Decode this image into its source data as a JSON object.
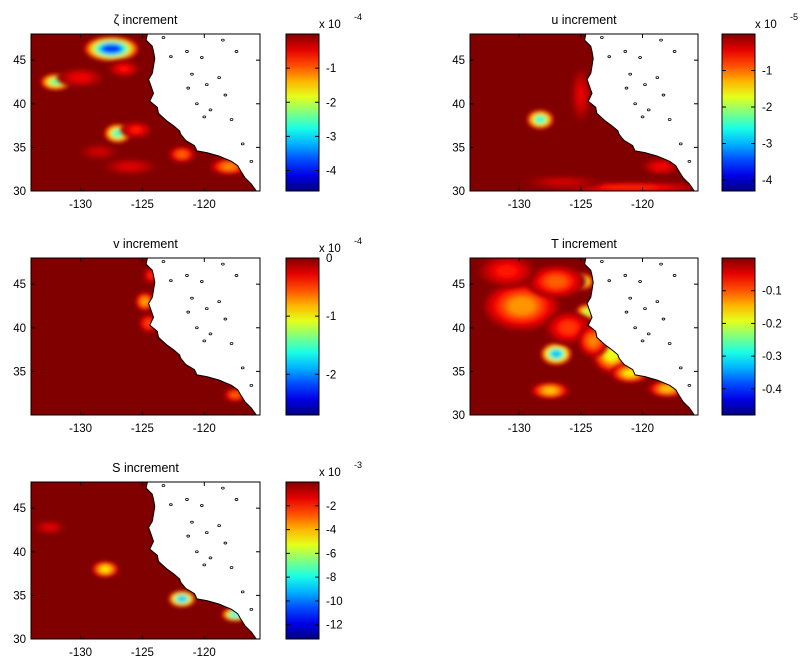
{
  "chart_data": [
    {
      "type": "heatmap",
      "title": "ζ increment",
      "xticks": [
        -130,
        -125,
        -120
      ],
      "yticks": [
        30,
        35,
        40,
        45
      ],
      "xlim": [
        -134,
        -115.5
      ],
      "ylim": [
        30,
        48
      ],
      "colorbar": {
        "ticks": [
          -4,
          -3,
          -2,
          -1
        ],
        "tick_labels": [
          "-4",
          "-3",
          "-2",
          "-1"
        ],
        "range": [
          -4.6,
          0
        ],
        "multiplier_base": "x 10",
        "multiplier_exp": "-4"
      },
      "features": [
        {
          "lon": -127.5,
          "lat": 46.3,
          "value": -4.4,
          "r_lon": 1.4,
          "r_lat": 0.9
        },
        {
          "lon": -132.0,
          "lat": 42.5,
          "value": -2.8,
          "r_lon": 0.8,
          "r_lat": 0.6
        },
        {
          "lon": -127.0,
          "lat": 36.6,
          "value": -3.0,
          "r_lon": 0.7,
          "r_lat": 0.7
        },
        {
          "lon": -126.5,
          "lat": 44.0,
          "value": -0.7,
          "r_lon": 0.8,
          "r_lat": 0.6
        },
        {
          "lon": -130.0,
          "lat": 43.0,
          "value": -0.6,
          "r_lon": 1.2,
          "r_lat": 0.7
        },
        {
          "lon": -125.5,
          "lat": 37.0,
          "value": -0.8,
          "r_lon": 0.8,
          "r_lat": 0.6
        },
        {
          "lon": -121.8,
          "lat": 34.2,
          "value": -1.2,
          "r_lon": 0.7,
          "r_lat": 0.6
        },
        {
          "lon": -118.0,
          "lat": 32.8,
          "value": -1.4,
          "r_lon": 1.0,
          "r_lat": 0.6
        },
        {
          "lon": -126.0,
          "lat": 32.8,
          "value": -0.5,
          "r_lon": 1.4,
          "r_lat": 0.6
        },
        {
          "lon": -128.5,
          "lat": 34.5,
          "value": -0.4,
          "r_lon": 1.0,
          "r_lat": 0.6
        }
      ]
    },
    {
      "type": "heatmap",
      "title": "u increment",
      "xticks": [
        -130,
        -125,
        -120
      ],
      "yticks": [
        30,
        35,
        40,
        45
      ],
      "xlim": [
        -134,
        -115.5
      ],
      "ylim": [
        30,
        48
      ],
      "colorbar": {
        "ticks": [
          -4,
          -3,
          -2,
          -1
        ],
        "tick_labels": [
          "-4",
          "-3",
          "-2",
          "-1"
        ],
        "range": [
          -4.3,
          0
        ],
        "multiplier_base": "x 10",
        "multiplier_exp": "-5"
      },
      "features": [
        {
          "lon": -128.3,
          "lat": 38.2,
          "value": -2.9,
          "r_lon": 0.7,
          "r_lat": 0.7
        },
        {
          "lon": -121.0,
          "lat": 30.4,
          "value": -0.8,
          "r_lon": 4.0,
          "r_lat": 0.4
        },
        {
          "lon": -126.5,
          "lat": 31.0,
          "value": -0.4,
          "r_lon": 2.0,
          "r_lat": 0.5
        },
        {
          "lon": -118.5,
          "lat": 32.8,
          "value": -0.6,
          "r_lon": 1.0,
          "r_lat": 0.6
        },
        {
          "lon": -125.0,
          "lat": 41.0,
          "value": -0.5,
          "r_lon": 0.5,
          "r_lat": 2.0
        }
      ]
    },
    {
      "type": "heatmap",
      "title": "v increment",
      "xticks": [
        -130,
        -125,
        -120
      ],
      "yticks": [
        35,
        40,
        45
      ],
      "xlim": [
        -134,
        -115.5
      ],
      "ylim": [
        30,
        48
      ],
      "colorbar": {
        "ticks": [
          -2,
          -1,
          0
        ],
        "tick_labels": [
          "-2",
          "-1",
          "0"
        ],
        "range": [
          -2.7,
          0
        ],
        "multiplier_base": "x 10",
        "multiplier_exp": "-4"
      },
      "features": [
        {
          "lon": -124.8,
          "lat": 43.0,
          "value": -0.9,
          "r_lon": 0.5,
          "r_lat": 0.7
        },
        {
          "lon": -124.5,
          "lat": 40.5,
          "value": -0.6,
          "r_lon": 0.5,
          "r_lat": 0.7
        },
        {
          "lon": -124.3,
          "lat": 46.0,
          "value": -0.5,
          "r_lon": 0.4,
          "r_lat": 0.6
        },
        {
          "lon": -117.5,
          "lat": 32.3,
          "value": -0.7,
          "r_lon": 0.6,
          "r_lat": 0.5
        }
      ]
    },
    {
      "type": "heatmap",
      "title": "T increment",
      "xticks": [
        -130,
        -125,
        -120
      ],
      "yticks": [
        30,
        35,
        40,
        45
      ],
      "xlim": [
        -134,
        -115.5
      ],
      "ylim": [
        30,
        48
      ],
      "colorbar": {
        "ticks": [
          -0.4,
          -0.3,
          -0.2,
          -0.1
        ],
        "tick_labels": [
          "-0.4",
          "-0.3",
          "-0.2",
          "-0.1"
        ],
        "range": [
          -0.48,
          0
        ]
      },
      "features": [
        {
          "lon": -127.0,
          "lat": 37.0,
          "value": -0.38,
          "r_lon": 0.8,
          "r_lat": 0.8
        },
        {
          "lon": -125.0,
          "lat": 45.3,
          "value": -0.28,
          "r_lon": 0.7,
          "r_lat": 0.6
        },
        {
          "lon": -124.5,
          "lat": 41.8,
          "value": -0.25,
          "r_lon": 0.6,
          "r_lat": 0.6
        },
        {
          "lon": -122.5,
          "lat": 37.0,
          "value": -0.22,
          "r_lon": 1.0,
          "r_lat": 1.4
        },
        {
          "lon": -121.0,
          "lat": 34.8,
          "value": -0.2,
          "r_lon": 1.0,
          "r_lat": 0.7
        },
        {
          "lon": -118.0,
          "lat": 33.0,
          "value": -0.18,
          "r_lon": 1.0,
          "r_lat": 0.6
        },
        {
          "lon": -129.8,
          "lat": 42.5,
          "value": -0.15,
          "r_lon": 2.0,
          "r_lat": 1.8
        },
        {
          "lon": -127.0,
          "lat": 45.3,
          "value": -0.12,
          "r_lon": 1.5,
          "r_lat": 1.2
        },
        {
          "lon": -127.5,
          "lat": 32.8,
          "value": -0.18,
          "r_lon": 1.0,
          "r_lat": 0.6
        },
        {
          "lon": -126.0,
          "lat": 40.0,
          "value": -0.1,
          "r_lon": 1.2,
          "r_lat": 1.2
        },
        {
          "lon": -131.0,
          "lat": 46.5,
          "value": -0.08,
          "r_lon": 1.5,
          "r_lat": 1.2
        },
        {
          "lon": -124.0,
          "lat": 38.5,
          "value": -0.14,
          "r_lon": 0.8,
          "r_lat": 1.2
        }
      ]
    },
    {
      "type": "heatmap",
      "title": "S increment",
      "xticks": [
        -130,
        -125,
        -120
      ],
      "yticks": [
        30,
        35,
        40,
        45
      ],
      "xlim": [
        -134,
        -115.5
      ],
      "ylim": [
        30,
        48
      ],
      "colorbar": {
        "ticks": [
          -12,
          -10,
          -8,
          -6,
          -4,
          -2
        ],
        "tick_labels": [
          "-12",
          "-10",
          "-8",
          "-6",
          "-4",
          "-2"
        ],
        "range": [
          -13.2,
          0
        ],
        "multiplier_base": "x 10",
        "multiplier_exp": "-3"
      },
      "features": [
        {
          "lon": -128.0,
          "lat": 38.0,
          "value": -5.5,
          "r_lon": 0.7,
          "r_lat": 0.6
        },
        {
          "lon": -121.8,
          "lat": 34.6,
          "value": -10.5,
          "r_lon": 0.7,
          "r_lat": 0.6
        },
        {
          "lon": -117.5,
          "lat": 32.8,
          "value": -9.5,
          "r_lon": 0.7,
          "r_lat": 0.5
        },
        {
          "lon": -132.5,
          "lat": 42.8,
          "value": -1.5,
          "r_lon": 0.8,
          "r_lat": 0.5
        }
      ]
    }
  ]
}
